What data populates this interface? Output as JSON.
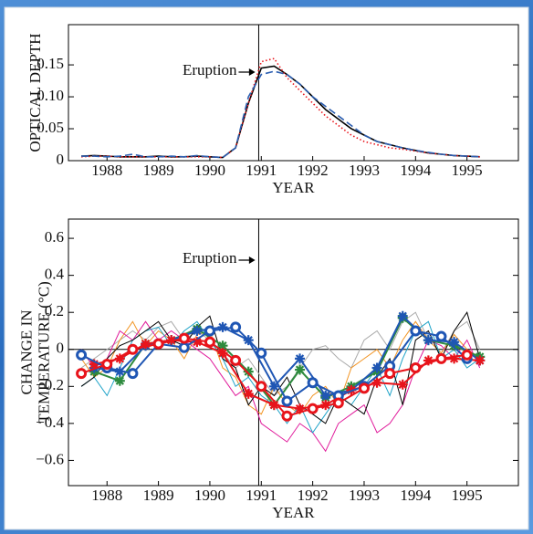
{
  "chart_data": [
    {
      "type": "line",
      "y_label": [
        "OPTICAL DEPTH"
      ],
      "x_label": "YEAR",
      "annotation": "Eruption",
      "eruption_x": 1991.45,
      "xlim": [
        1987.75,
        1996.5
      ],
      "ylim": [
        0,
        0.213
      ],
      "xticks": [
        {
          "value": 1988.5,
          "label": "1988"
        },
        {
          "value": 1989.5,
          "label": "1989"
        },
        {
          "value": 1990.5,
          "label": "1990"
        },
        {
          "value": 1991.5,
          "label": "1991"
        },
        {
          "value": 1992.5,
          "label": "1992"
        },
        {
          "value": 1993.5,
          "label": "1993"
        },
        {
          "value": 1994.5,
          "label": "1994"
        },
        {
          "value": 1995.5,
          "label": "1995"
        }
      ],
      "yticks": [
        0,
        0.05,
        {
          "value": 0.1,
          "label": "0.10"
        },
        0.15
      ],
      "x": [
        1988,
        1988.25,
        1988.5,
        1988.75,
        1989,
        1989.25,
        1989.5,
        1989.75,
        1990,
        1990.25,
        1990.5,
        1990.75,
        1991,
        1991.25,
        1991.5,
        1991.75,
        1992,
        1992.25,
        1992.5,
        1992.75,
        1993,
        1993.25,
        1993.5,
        1993.75,
        1994,
        1994.25,
        1994.5,
        1994.75,
        1995,
        1995.25,
        1995.5,
        1995.75
      ],
      "series": [
        {
          "color": "#000000",
          "dash": "solid",
          "values": [
            0.007,
            0.008,
            0.007,
            0.006,
            0.006,
            0.006,
            0.007,
            0.006,
            0.006,
            0.007,
            0.006,
            0.005,
            0.02,
            0.09,
            0.145,
            0.148,
            0.135,
            0.12,
            0.1,
            0.08,
            0.065,
            0.05,
            0.04,
            0.03,
            0.025,
            0.02,
            0.016,
            0.012,
            0.01,
            0.008,
            0.007,
            0.006
          ]
        },
        {
          "color": "#e8141b",
          "dash": "dotted",
          "values": [
            0.006,
            0.007,
            0.007,
            0.006,
            0.006,
            0.006,
            0.006,
            0.006,
            0.006,
            0.006,
            0.006,
            0.005,
            0.02,
            0.09,
            0.155,
            0.16,
            0.13,
            0.11,
            0.09,
            0.07,
            0.055,
            0.04,
            0.03,
            0.025,
            0.02,
            0.018,
            0.015,
            0.012,
            0.01,
            0.008,
            0.007,
            0.006
          ]
        },
        {
          "color": "#2a5db0",
          "dash": "dashed",
          "values": [
            0.007,
            0.007,
            0.006,
            0.007,
            0.01,
            0.006,
            0.006,
            0.007,
            0.006,
            0.008,
            0.006,
            0.005,
            0.02,
            0.1,
            0.135,
            0.14,
            0.135,
            0.12,
            0.1,
            0.085,
            0.07,
            0.055,
            0.04,
            0.03,
            0.025,
            0.02,
            0.016,
            0.013,
            0.01,
            0.008,
            0.007,
            0.006
          ]
        }
      ]
    },
    {
      "type": "line",
      "y_label": [
        "CHANGE IN",
        "TEMPERATURE (°C)"
      ],
      "x_label": "YEAR",
      "annotation": "Eruption",
      "eruption_x": 1991.45,
      "hline": 0,
      "xlim": [
        1987.75,
        1996.5
      ],
      "ylim": [
        -0.736,
        0.704
      ],
      "xticks": [
        {
          "value": 1988.5,
          "label": "1988"
        },
        {
          "value": 1989.5,
          "label": "1989"
        },
        {
          "value": 1990.5,
          "label": "1990"
        },
        {
          "value": 1991.5,
          "label": "1991"
        },
        {
          "value": 1992.5,
          "label": "1992"
        },
        {
          "value": 1993.5,
          "label": "1993"
        },
        {
          "value": 1994.5,
          "label": "1994"
        },
        {
          "value": 1995.5,
          "label": "1995"
        }
      ],
      "yticks": [
        {
          "value": -0.6,
          "label": "−0.6"
        },
        {
          "value": -0.4,
          "label": "−0.4"
        },
        {
          "value": -0.2,
          "label": "−0.2"
        },
        0,
        0.2,
        0.4,
        0.6
      ],
      "x": [
        1988,
        1988.25,
        1988.5,
        1988.75,
        1989,
        1989.25,
        1989.5,
        1989.75,
        1990,
        1990.25,
        1990.5,
        1990.75,
        1991,
        1991.25,
        1991.5,
        1991.75,
        1992,
        1992.25,
        1992.5,
        1992.75,
        1993,
        1993.25,
        1993.5,
        1993.75,
        1994,
        1994.25,
        1994.5,
        1994.75,
        1995,
        1995.25,
        1995.5,
        1995.75
      ],
      "series": [
        {
          "color": "#aaaaaa",
          "dash": "solid",
          "values": [
            -0.1,
            -0.05,
            0,
            0.05,
            0.1,
            0.05,
            0.12,
            0.15,
            0.05,
            0.1,
            0.05,
            -0.02,
            -0.1,
            -0.05,
            -0.15,
            -0.25,
            -0.2,
            -0.1,
            0,
            0.02,
            -0.05,
            -0.1,
            0.05,
            0.1,
            0,
            0.15,
            0.2,
            0.05,
            -0.02,
            0.1,
            0.15,
            0
          ]
        },
        {
          "color": "#f29422",
          "dash": "solid",
          "values": [
            -0.05,
            -0.15,
            -0.1,
            0.05,
            0.15,
            0.02,
            0.1,
            0.05,
            -0.05,
            0.08,
            0.1,
            -0.1,
            -0.15,
            -0.3,
            -0.35,
            -0.2,
            -0.3,
            -0.35,
            -0.25,
            -0.2,
            -0.3,
            -0.1,
            -0.05,
            0,
            -0.1,
            0.05,
            0.15,
            0.05,
            -0.02,
            0.08,
            0,
            -0.05
          ]
        },
        {
          "color": "#e0199a",
          "dash": "solid",
          "values": [
            0,
            -0.1,
            -0.05,
            0.1,
            0.05,
            0.15,
            0.05,
            0.1,
            0.05,
            0,
            -0.05,
            -0.15,
            -0.25,
            -0.2,
            -0.4,
            -0.45,
            -0.5,
            -0.4,
            -0.45,
            -0.55,
            -0.4,
            -0.35,
            -0.3,
            -0.45,
            -0.4,
            -0.3,
            -0.1,
            0.05,
            0.02,
            -0.05,
            0.05,
            -0.1
          ]
        },
        {
          "color": "#1ea3c8",
          "dash": "solid",
          "values": [
            -0.2,
            -0.15,
            -0.25,
            -0.1,
            0.05,
            0.1,
            0.12,
            0.02,
            0.1,
            0.15,
            0.05,
            -0.05,
            -0.2,
            -0.15,
            -0.25,
            -0.3,
            -0.4,
            -0.3,
            -0.45,
            -0.35,
            -0.25,
            -0.3,
            -0.2,
            -0.1,
            -0.25,
            -0.05,
            0.1,
            0.15,
            -0.05,
            0,
            -0.1,
            -0.05
          ]
        },
        {
          "color": "#000000",
          "dash": "solid",
          "values": [
            -0.2,
            -0.15,
            -0.05,
            0.02,
            0.05,
            0.1,
            0.15,
            0.05,
            0.02,
            0.12,
            0.18,
            -0.05,
            -0.1,
            -0.3,
            -0.2,
            -0.25,
            -0.15,
            -0.3,
            -0.35,
            -0.4,
            -0.25,
            -0.3,
            -0.35,
            -0.15,
            -0.05,
            -0.3,
            0.05,
            0.1,
            -0.05,
            0.1,
            0.2,
            -0.05
          ]
        },
        {
          "color": "#2e8b3e",
          "dash": "solid",
          "marker": "asterisk",
          "x": [
            1988.25,
            1988.75,
            1989.25,
            1989.75,
            1990.25,
            1990.75,
            1991.25,
            1991.75,
            1992.25,
            1992.75,
            1993.25,
            1993.75,
            1994.25,
            1994.75,
            1995.25,
            1995.75
          ],
          "values": [
            -0.12,
            -0.17,
            0.03,
            0.05,
            0.11,
            0.02,
            -0.12,
            -0.3,
            -0.11,
            -0.26,
            -0.2,
            -0.12,
            0.17,
            0.05,
            0.02,
            -0.04
          ]
        },
        {
          "color": "#1f56b4",
          "dash": "solid",
          "marker": "asterisk",
          "x": [
            1988.25,
            1988.75,
            1989.25,
            1989.75,
            1990.25,
            1990.75,
            1991.25,
            1991.75,
            1992.25,
            1992.75,
            1993.25,
            1993.75,
            1994.25,
            1994.75,
            1995.25,
            1995.75
          ],
          "values": [
            -0.1,
            -0.12,
            0.02,
            0.05,
            0.1,
            0.12,
            0.05,
            -0.2,
            -0.05,
            -0.25,
            -0.22,
            -0.1,
            0.18,
            0.05,
            0.04,
            -0.06
          ]
        },
        {
          "color": "#e8141b",
          "dash": "solid",
          "marker": "asterisk",
          "x": [
            1988.25,
            1988.75,
            1989.25,
            1989.75,
            1990.25,
            1990.75,
            1991.25,
            1991.75,
            1992.25,
            1992.75,
            1993.25,
            1993.75,
            1994.25,
            1994.75,
            1995.25,
            1995.75
          ],
          "values": [
            -0.08,
            -0.05,
            0.03,
            0.05,
            0.04,
            -0.02,
            -0.24,
            -0.3,
            -0.32,
            -0.3,
            -0.22,
            -0.18,
            -0.19,
            -0.06,
            -0.05,
            -0.06
          ]
        },
        {
          "color": "#1f56b4",
          "dash": "solid",
          "marker": "circle",
          "x": [
            1988,
            1988.5,
            1989,
            1989.5,
            1990,
            1990.5,
            1991,
            1991.5,
            1992,
            1992.5,
            1993,
            1993.5,
            1994,
            1994.5,
            1995,
            1995.5
          ],
          "values": [
            -0.03,
            -0.1,
            -0.13,
            0.03,
            0.01,
            0.1,
            0.12,
            -0.02,
            -0.28,
            -0.18,
            -0.25,
            -0.2,
            -0.09,
            0.1,
            0.07,
            -0.05
          ]
        },
        {
          "color": "#e8141b",
          "dash": "solid",
          "marker": "circle",
          "x": [
            1988,
            1988.5,
            1989,
            1989.5,
            1990,
            1990.5,
            1991,
            1991.5,
            1992,
            1992.5,
            1993,
            1993.5,
            1994,
            1994.5,
            1995,
            1995.5
          ],
          "values": [
            -0.13,
            -0.08,
            0,
            0.03,
            0.06,
            0.04,
            -0.06,
            -0.2,
            -0.36,
            -0.32,
            -0.29,
            -0.21,
            -0.13,
            -0.1,
            -0.05,
            -0.03
          ]
        }
      ]
    }
  ]
}
